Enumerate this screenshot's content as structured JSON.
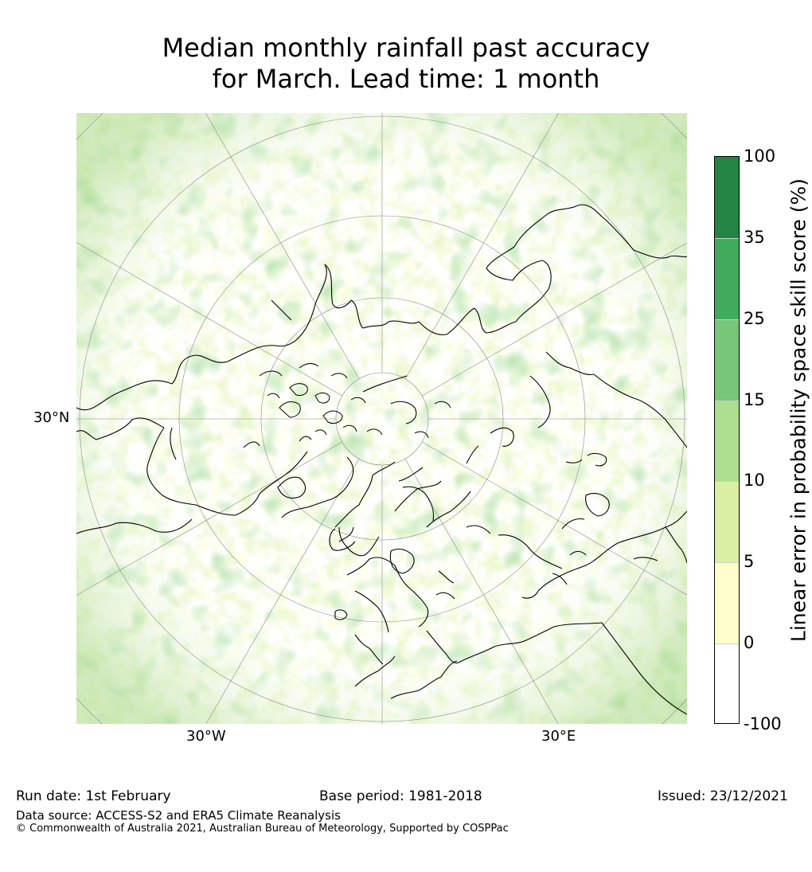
{
  "title_line1": "Median monthly rainfall past accuracy",
  "title_line2": "for March. Lead time: 1 month",
  "map": {
    "projection": "north-polar-stereographic",
    "graticule_labels": {
      "lat_left": "30°N",
      "lon_bottom_left": "30°W",
      "lon_bottom_right": "30°E"
    },
    "colors": {
      "coastline": "#000000",
      "graticule": "#888888"
    }
  },
  "colorbar": {
    "label": "Linear error in probability space skill score (%)",
    "tick_labels": [
      "100",
      "35",
      "25",
      "15",
      "10",
      "5",
      "0",
      "-100"
    ],
    "bins": [
      {
        "from": "35",
        "to": "100",
        "color": "#238443"
      },
      {
        "from": "25",
        "to": "35",
        "color": "#41ab5d"
      },
      {
        "from": "15",
        "to": "25",
        "color": "#78c679"
      },
      {
        "from": "10",
        "to": "15",
        "color": "#addd8e"
      },
      {
        "from": "5",
        "to": "10",
        "color": "#d9f0a3"
      },
      {
        "from": "0",
        "to": "5",
        "color": "#ffffcc"
      },
      {
        "from": "-100",
        "to": "0",
        "color": "#ffffff"
      }
    ]
  },
  "footer": {
    "run_date": "Run date: 1st February",
    "base_period": "Base period: 1981-2018",
    "issued": "Issued: 23/12/2021",
    "data_source": "Data source: ACCESS-S2 and ERA5 Climate Reanalysis",
    "copyright": "© Commonwealth of Australia 2021, Australian Bureau of Meteorology, Supported by COSPPac"
  }
}
